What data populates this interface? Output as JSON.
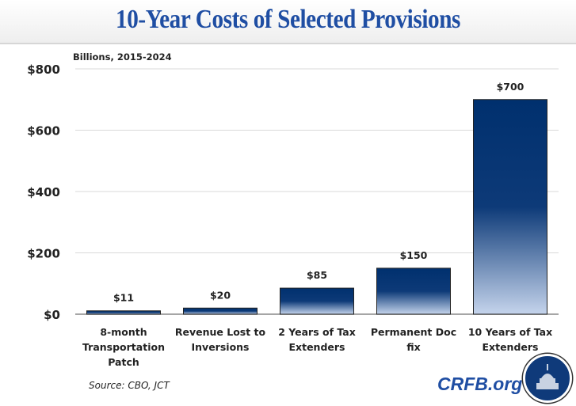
{
  "header": {
    "title": "10-Year Costs of Selected Provisions"
  },
  "chart_data": {
    "type": "bar",
    "title": "10-Year Costs of Selected Provisions",
    "subtitle": "Billions, 2015-2024",
    "xlabel": "",
    "ylabel": "",
    "ylim": [
      0,
      800
    ],
    "yticks": [
      0,
      200,
      400,
      600,
      800
    ],
    "ytick_labels": [
      "$0",
      "$200",
      "$400",
      "$600",
      "$800"
    ],
    "grid": true,
    "categories": [
      [
        "8-month",
        "Transportation",
        "Patch"
      ],
      [
        "Revenue Lost to",
        "Inversions"
      ],
      [
        "2 Years of Tax",
        "Extenders"
      ],
      [
        "Permanent Doc",
        "fix"
      ],
      [
        "10 Years of Tax",
        "Extenders"
      ]
    ],
    "values": [
      11,
      20,
      85,
      150,
      700
    ],
    "data_labels": [
      "$11",
      "$20",
      "$85",
      "$150",
      "$700"
    ],
    "colors": {
      "bar_top": "#00306e",
      "bar_bottom": "#c5d4ec",
      "title": "#1f4ea3"
    }
  },
  "footer": {
    "source": "Source: CBO, JCT",
    "brand": "CRFB.org",
    "logo_icon": "capitol-dome-logo-icon"
  }
}
